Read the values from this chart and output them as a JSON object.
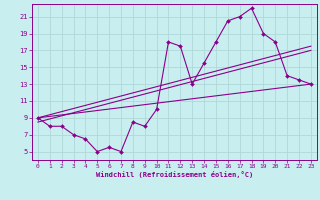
{
  "bg_color": "#c8eef0",
  "line_color": "#8b008b",
  "grid_color": "#b0d8d8",
  "xlabel": "Windchill (Refroidissement éolien,°C)",
  "xlabel_color": "#8b008b",
  "tick_color": "#8b008b",
  "xlim": [
    -0.5,
    23.5
  ],
  "ylim": [
    4,
    22.5
  ],
  "yticks": [
    5,
    7,
    9,
    11,
    13,
    15,
    17,
    19,
    21
  ],
  "xticks": [
    0,
    1,
    2,
    3,
    4,
    5,
    6,
    7,
    8,
    9,
    10,
    11,
    12,
    13,
    14,
    15,
    16,
    17,
    18,
    19,
    20,
    21,
    22,
    23
  ],
  "main_x": [
    0,
    1,
    2,
    3,
    4,
    5,
    6,
    7,
    8,
    9,
    10,
    11,
    12,
    13,
    14,
    15,
    16,
    17,
    18,
    19,
    20,
    21,
    22,
    23
  ],
  "main_y": [
    9,
    8,
    8,
    7,
    6.5,
    5,
    5.5,
    5,
    8.5,
    8,
    10,
    18,
    17.5,
    13,
    15.5,
    18,
    20.5,
    21,
    22,
    19,
    18,
    14,
    13.5,
    13
  ],
  "line1_x": [
    0,
    23
  ],
  "line1_y": [
    9,
    13
  ],
  "line2_x": [
    0,
    23
  ],
  "line2_y": [
    9,
    17.5
  ],
  "line3_x": [
    0,
    23
  ],
  "line3_y": [
    8.5,
    17
  ]
}
